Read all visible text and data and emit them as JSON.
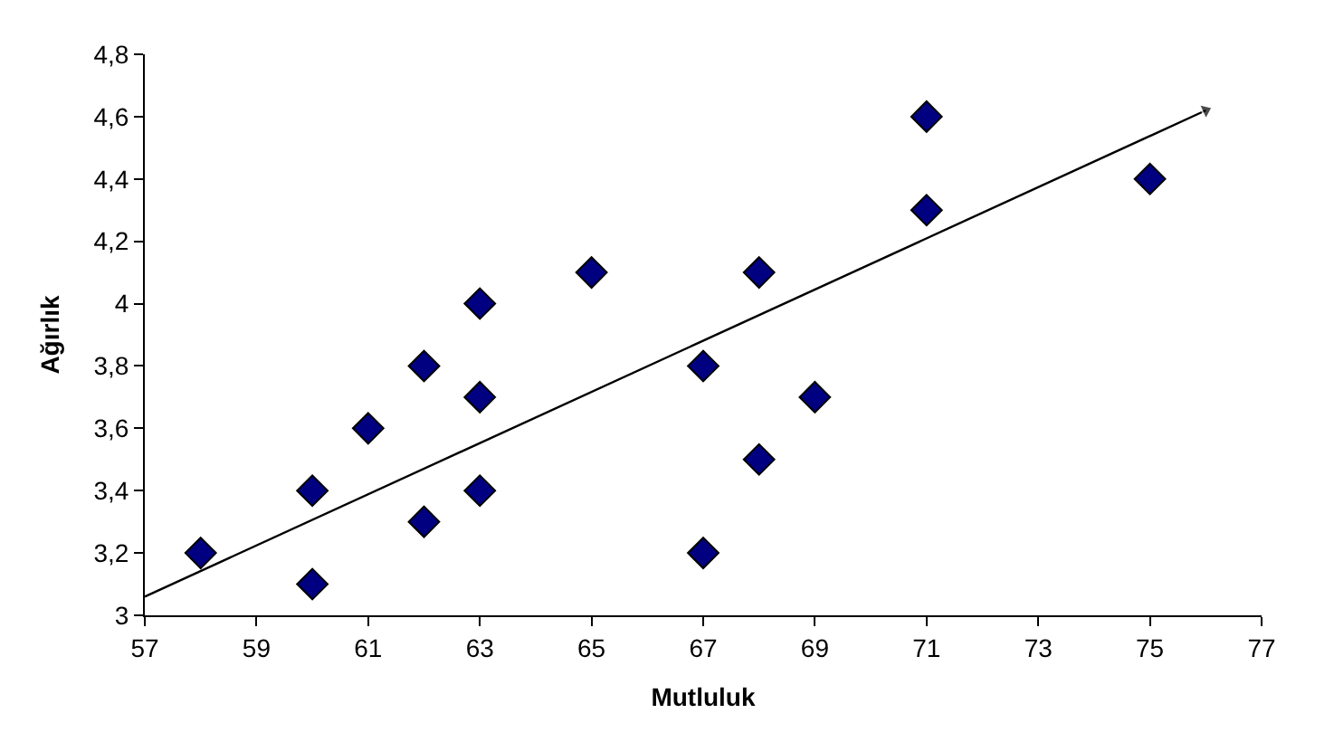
{
  "chart_data": {
    "type": "scatter",
    "xlabel": "Mutluluk",
    "ylabel": "Ağırlık",
    "xlim": [
      57,
      77
    ],
    "xticks": [
      57,
      59,
      61,
      63,
      65,
      67,
      69,
      71,
      73,
      75,
      77
    ],
    "ylim": [
      3,
      4.8
    ],
    "yticks": [
      3,
      {
        "value": 3.2,
        "label": "3,2"
      },
      {
        "value": 3.4,
        "label": "3,4"
      },
      {
        "value": 3.6,
        "label": "3,6"
      },
      {
        "value": 3.8,
        "label": "3,8"
      },
      4,
      {
        "value": 4.2,
        "label": "4,2"
      },
      {
        "value": 4.4,
        "label": "4,4"
      },
      {
        "value": 4.6,
        "label": "4,6"
      },
      {
        "value": 4.8,
        "label": "4,8"
      }
    ],
    "grid": false,
    "legend": false,
    "series": [
      {
        "type": "scatter",
        "marker": "diamond",
        "color": "#000080",
        "x": [
          58,
          60,
          60,
          61,
          62,
          62,
          63,
          63,
          63,
          65,
          67,
          67,
          68,
          68,
          69,
          71,
          71,
          75
        ],
        "values": [
          3.2,
          3.4,
          3.1,
          3.6,
          3.8,
          3.3,
          4.0,
          3.7,
          3.4,
          4.1,
          3.8,
          3.2,
          4.1,
          3.5,
          3.7,
          4.6,
          4.3,
          4.4
        ]
      },
      {
        "type": "line",
        "marker": "triangle",
        "color": "#000000",
        "x": [
          57,
          76
        ],
        "values": [
          3.06,
          4.62
        ]
      }
    ]
  }
}
